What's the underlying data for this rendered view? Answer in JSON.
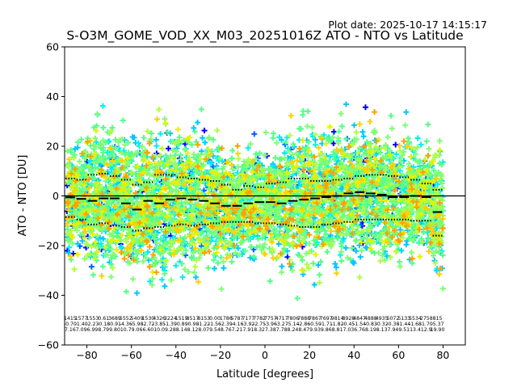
{
  "chart_data": {
    "type": "scatter",
    "title": "S-O3M_GOME_VOD_XX_M03_20251016Z ATO - NTO vs Latitude",
    "plot_date": "Plot date: 2025-10-17 14:15:17",
    "xlabel": "Latitude [degrees]",
    "ylabel": "ATO - NTO [DU]",
    "xlim": [
      -90,
      90
    ],
    "ylim": [
      -60,
      60
    ],
    "x_ticks": [
      -80,
      -60,
      -40,
      -20,
      0,
      20,
      40,
      60,
      80
    ],
    "y_ticks": [
      -60,
      -40,
      -20,
      0,
      20,
      40,
      60
    ],
    "x_tick_labels": [
      "−80",
      "−60",
      "−40",
      "−20",
      "0",
      "20",
      "40",
      "60",
      "80"
    ],
    "y_tick_labels": [
      "−60",
      "−40",
      "−20",
      "0",
      "20",
      "40",
      "60"
    ],
    "grid": false,
    "zero_line": 0,
    "marker": "+",
    "colormap": [
      "#0000ff",
      "#0060ff",
      "#00c8ff",
      "#00f0f0",
      "#55ff88",
      "#80ff70",
      "#b0ff40",
      "#e8f000",
      "#ffd000",
      "#ffa000"
    ],
    "bins": {
      "lat": [
        -87.5,
        -82.5,
        -77.5,
        -72.5,
        -67.5,
        -62.5,
        -57.5,
        -52.5,
        -47.5,
        -42.5,
        -37.5,
        -32.5,
        -27.5,
        -22.5,
        -17.5,
        -12.5,
        -7.5,
        -2.5,
        2.5,
        7.5,
        12.5,
        17.5,
        22.5,
        27.5,
        32.5,
        37.5,
        42.5,
        47.5,
        52.5,
        57.5,
        62.5,
        67.5,
        72.5,
        77.5
      ],
      "mean": [
        -0.6,
        -1.2,
        -2.0,
        -1.0,
        -1.0,
        -3.0,
        -5.5,
        -2.0,
        -3.0,
        -1.5,
        -1.0,
        -1.5,
        -2.0,
        -3.0,
        -4.0,
        -4.0,
        -3.0,
        -2.5,
        -2.5,
        -3.0,
        -2.0,
        -1.5,
        -1.0,
        -0.5,
        0.0,
        1.0,
        1.5,
        1.0,
        0.5,
        -0.5,
        -0.5,
        0.0,
        -0.5,
        -6.5
      ],
      "upper_sd": [
        7.0,
        6.5,
        8.5,
        9.0,
        8.0,
        6.5,
        4.5,
        5.5,
        8.5,
        8.5,
        7.5,
        7.0,
        6.5,
        6.0,
        4.5,
        2.5,
        4.0,
        3.5,
        5.0,
        5.5,
        7.0,
        7.0,
        6.0,
        6.0,
        6.5,
        7.0,
        8.0,
        8.5,
        8.5,
        8.0,
        7.5,
        6.5,
        5.0,
        2.5
      ],
      "lower_sd": [
        -8.5,
        -9.5,
        -11.5,
        -11.0,
        -12.0,
        -12.5,
        -14.0,
        -13.0,
        -12.5,
        -12.0,
        -11.5,
        -12.0,
        -11.5,
        -11.0,
        -10.5,
        -10.5,
        -10.5,
        -11.0,
        -11.0,
        -11.5,
        -12.0,
        -12.5,
        -12.5,
        -11.5,
        -11.0,
        -10.5,
        -9.5,
        -9.5,
        -9.5,
        -9.5,
        -9.5,
        -10.0,
        -10.0,
        -16.0
      ]
    },
    "bin_stats": [
      {
        "count": "1415",
        "mean": "-0.70",
        "sd": "7.16"
      },
      {
        "count": "1577",
        "mean": "-1.40",
        "sd": "7.09"
      },
      {
        "count": "1553",
        "mean": "-2.23",
        "sd": "6.99"
      },
      {
        "count": "0.61",
        "mean": "-0.18",
        "sd": "8.79"
      },
      {
        "count": "3689",
        "mean": "-0.91",
        "sd": "9.80"
      },
      {
        "count": "5552",
        "mean": "-4.36",
        "sd": "10.7"
      },
      {
        "count": "5409",
        "mean": "-5.98",
        "sd": "9.06"
      },
      {
        "count": "1530",
        "mean": "-2.72",
        "sd": "6.60"
      },
      {
        "count": "4326",
        "mean": "-3.85",
        "sd": "10.0"
      },
      {
        "count": "3224",
        "mean": "-1.39",
        "sd": "9.28"
      },
      {
        "count": "1519",
        "mean": "-0.89",
        "sd": "8.14"
      },
      {
        "count": "8517",
        "mean": "-0.98",
        "sd": "8.12"
      },
      {
        "count": "8153",
        "mean": "-1.22",
        "sd": "8.07"
      },
      {
        "count": "0.00",
        "mean": "-1.56",
        "sd": "9.54"
      },
      {
        "count": "1786",
        "mean": "-2.39",
        "sd": "8.76"
      },
      {
        "count": "5787",
        "mean": "-4.16",
        "sd": "7.21"
      },
      {
        "count": "7177",
        "mean": "-3.92",
        "sd": "7.91"
      },
      {
        "count": "7782",
        "mean": "-2.75",
        "sd": "8.32"
      },
      {
        "count": "7757",
        "mean": "-3.96",
        "sd": "7.38"
      },
      {
        "count": "4717",
        "mean": "-3.27",
        "sd": "7.78"
      },
      {
        "count": "7806",
        "mean": "-5.14",
        "sd": "8.24"
      },
      {
        "count": "7888",
        "mean": "-2.86",
        "sd": "8.47"
      },
      {
        "count": "7867",
        "mean": "-0.59",
        "sd": "9.93"
      },
      {
        "count": "7697",
        "mean": "-1.71",
        "sd": "9.86"
      },
      {
        "count": "9814",
        "mean": "-1.82",
        "sd": "8.81"
      },
      {
        "count": "8928",
        "mean": "-0.45",
        "sd": "7.03"
      },
      {
        "count": "4847",
        "mean": "-1.54",
        "sd": "6.76"
      },
      {
        "count": "4888",
        "mean": "-0.83",
        "sd": "8.19"
      },
      {
        "count": "4935",
        "mean": "-0.32",
        "sd": "8.13"
      },
      {
        "count": "5072",
        "mean": "-0.38",
        "sd": "7.94"
      },
      {
        "count": "5133",
        "mean": "-1.44",
        "sd": "9.51"
      },
      {
        "count": "5534",
        "mean": "-1.68",
        "sd": "13.4"
      },
      {
        "count": "2758",
        "mean": "-1.70",
        "sd": "12.9"
      },
      {
        "count": "815",
        "mean": "-5.37",
        "sd": "19.90"
      }
    ]
  }
}
